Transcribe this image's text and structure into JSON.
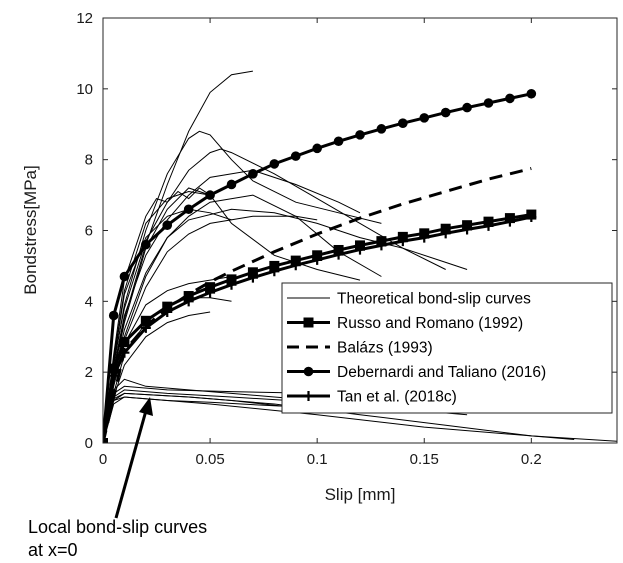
{
  "chart_data": {
    "type": "line",
    "xlabel": "Slip [mm]",
    "ylabel": "Bondstress[MPa]",
    "xlim": [
      0,
      0.24
    ],
    "ylim": [
      0,
      12
    ],
    "x_ticks": [
      0,
      0.05,
      0.1,
      0.15,
      0.2
    ],
    "x_tick_labels": [
      "0",
      "0.05",
      "0.1",
      "0.15",
      "0.2"
    ],
    "y_ticks": [
      0,
      2,
      4,
      6,
      8,
      10,
      12
    ],
    "y_tick_labels": [
      "0",
      "2",
      "4",
      "6",
      "8",
      "10",
      "12"
    ],
    "grid": false,
    "legend_position": "lower-right",
    "series": [
      {
        "name": "Russo and Romano (1992)",
        "style": "solid-thick",
        "marker": "square",
        "x": [
          0,
          0.005,
          0.01,
          0.02,
          0.03,
          0.04,
          0.05,
          0.06,
          0.07,
          0.08,
          0.09,
          0.1,
          0.11,
          0.12,
          0.13,
          0.14,
          0.15,
          0.16,
          0.17,
          0.18,
          0.19,
          0.2
        ],
        "y": [
          0,
          2.1,
          2.85,
          3.45,
          3.85,
          4.15,
          4.4,
          4.62,
          4.82,
          5.0,
          5.15,
          5.3,
          5.45,
          5.58,
          5.7,
          5.82,
          5.92,
          6.05,
          6.15,
          6.25,
          6.35,
          6.45
        ]
      },
      {
        "name": "Balázs (1993)",
        "style": "dashed-thick",
        "marker": "none",
        "x": [
          0,
          0.01,
          0.02,
          0.03,
          0.04,
          0.05,
          0.06,
          0.08,
          0.1,
          0.12,
          0.14,
          0.16,
          0.18,
          0.2
        ],
        "y": [
          0,
          2.6,
          3.3,
          3.8,
          4.2,
          4.55,
          4.85,
          5.4,
          5.9,
          6.35,
          6.75,
          7.1,
          7.45,
          7.75
        ]
      },
      {
        "name": "Debernardi and Taliano (2016)",
        "style": "solid-thick",
        "marker": "circle",
        "x": [
          0,
          0.005,
          0.01,
          0.02,
          0.03,
          0.04,
          0.05,
          0.06,
          0.07,
          0.08,
          0.09,
          0.1,
          0.11,
          0.12,
          0.13,
          0.14,
          0.15,
          0.16,
          0.17,
          0.18,
          0.19,
          0.2
        ],
        "y": [
          0,
          3.6,
          4.7,
          5.6,
          6.15,
          6.6,
          7.0,
          7.3,
          7.6,
          7.88,
          8.1,
          8.32,
          8.52,
          8.7,
          8.87,
          9.03,
          9.18,
          9.33,
          9.47,
          9.6,
          9.73,
          9.86
        ]
      },
      {
        "name": "Tan et al. (2018c)",
        "style": "solid-thick",
        "marker": "plus",
        "x": [
          0,
          0.005,
          0.01,
          0.02,
          0.03,
          0.04,
          0.05,
          0.06,
          0.07,
          0.08,
          0.09,
          0.1,
          0.11,
          0.12,
          0.13,
          0.14,
          0.15,
          0.16,
          0.17,
          0.18,
          0.19,
          0.2
        ],
        "y": [
          0,
          1.9,
          2.55,
          3.25,
          3.7,
          4.0,
          4.25,
          4.47,
          4.67,
          4.85,
          5.02,
          5.17,
          5.32,
          5.46,
          5.58,
          5.7,
          5.8,
          5.92,
          6.03,
          6.13,
          6.25,
          6.38
        ]
      },
      {
        "name": "Theoretical bond-slip curves",
        "style": "solid-thin",
        "marker": "none",
        "curves": [
          {
            "x": [
              0,
              0.005,
              0.01,
              0.02,
              0.03,
              0.04,
              0.05,
              0.06,
              0.07
            ],
            "y": [
              0,
              2.0,
              3.5,
              5.6,
              7.3,
              8.8,
              9.9,
              10.4,
              10.5
            ]
          },
          {
            "x": [
              0,
              0.005,
              0.01,
              0.02,
              0.03,
              0.04,
              0.045,
              0.05,
              0.06,
              0.07,
              0.09,
              0.11,
              0.13
            ],
            "y": [
              0,
              2.2,
              3.9,
              6.0,
              7.6,
              8.6,
              8.8,
              8.7,
              8.0,
              7.4,
              6.8,
              6.5,
              6.2
            ]
          },
          {
            "x": [
              0,
              0.005,
              0.01,
              0.02,
              0.03,
              0.04,
              0.05,
              0.055,
              0.06,
              0.08,
              0.1,
              0.12,
              0.14,
              0.16
            ],
            "y": [
              0,
              2.3,
              3.8,
              5.7,
              6.8,
              7.7,
              8.2,
              8.3,
              8.2,
              7.6,
              6.9,
              6.2,
              5.5,
              4.9
            ]
          },
          {
            "x": [
              0,
              0.005,
              0.01,
              0.02,
              0.03,
              0.04,
              0.05,
              0.07,
              0.09,
              0.11,
              0.12
            ],
            "y": [
              0,
              2.1,
              3.6,
              5.3,
              6.3,
              7.0,
              7.5,
              7.7,
              7.3,
              6.8,
              6.5
            ]
          },
          {
            "x": [
              0,
              0.005,
              0.01,
              0.02,
              0.03,
              0.04,
              0.05,
              0.07,
              0.09,
              0.11,
              0.13
            ],
            "y": [
              0,
              1.9,
              3.2,
              4.8,
              5.8,
              6.4,
              6.8,
              7.0,
              6.4,
              5.4,
              4.7
            ]
          },
          {
            "x": [
              0,
              0.005,
              0.01,
              0.02,
              0.03,
              0.04,
              0.05,
              0.06,
              0.08,
              0.1,
              0.12
            ],
            "y": [
              0,
              2.0,
              3.4,
              5.5,
              6.6,
              7.2,
              7.0,
              6.2,
              5.3,
              4.9,
              4.6
            ]
          },
          {
            "x": [
              0,
              0.005,
              0.01,
              0.02,
              0.03,
              0.04,
              0.06,
              0.08,
              0.1,
              0.12,
              0.14,
              0.16,
              0.17
            ],
            "y": [
              0,
              1.8,
              3.0,
              4.7,
              5.8,
              6.3,
              6.6,
              6.5,
              6.2,
              5.8,
              5.5,
              5.1,
              4.9
            ]
          },
          {
            "x": [
              0,
              0.005,
              0.01,
              0.02,
              0.03,
              0.04,
              0.05,
              0.07,
              0.09,
              0.1
            ],
            "y": [
              0,
              1.7,
              2.9,
              4.4,
              5.4,
              5.9,
              6.2,
              6.4,
              6.4,
              6.3
            ]
          },
          {
            "x": [
              0,
              0.005,
              0.01,
              0.02,
              0.03,
              0.04,
              0.05
            ],
            "y": [
              0,
              2.4,
              4.3,
              6.2,
              6.9,
              7.1,
              7.0
            ]
          },
          {
            "x": [
              0,
              0.005,
              0.01,
              0.02,
              0.025,
              0.03,
              0.035,
              0.04,
              0.045,
              0.05
            ],
            "y": [
              0,
              2.5,
              4.6,
              6.4,
              6.9,
              6.8,
              7.1,
              6.9,
              7.2,
              7.0
            ]
          },
          {
            "x": [
              0,
              0.005,
              0.01,
              0.02,
              0.03,
              0.04,
              0.05,
              0.06
            ],
            "y": [
              0,
              2.3,
              4.2,
              5.8,
              6.4,
              6.6,
              6.5,
              6.3
            ]
          },
          {
            "x": [
              0,
              0.005,
              0.01,
              0.02,
              0.03,
              0.04,
              0.05,
              0.06
            ],
            "y": [
              0,
              1.6,
              2.8,
              3.9,
              4.3,
              4.5,
              4.6,
              4.7
            ]
          },
          {
            "x": [
              0,
              0.005,
              0.01,
              0.02,
              0.03,
              0.04,
              0.05,
              0.06
            ],
            "y": [
              0,
              1.4,
              2.5,
              3.4,
              3.9,
              4.1,
              4.1,
              4.0
            ]
          },
          {
            "x": [
              0,
              0.005,
              0.01,
              0.02,
              0.03,
              0.04,
              0.05
            ],
            "y": [
              0,
              1.3,
              2.2,
              3.0,
              3.4,
              3.6,
              3.7
            ]
          }
        ]
      },
      {
        "name": "Local bond-slip curves at x=0",
        "style": "solid-thin",
        "marker": "none",
        "curves": [
          {
            "x": [
              0,
              0.005,
              0.01,
              0.02,
              0.04,
              0.06,
              0.08,
              0.1
            ],
            "y": [
              0,
              1.5,
              1.8,
              1.6,
              1.5,
              1.4,
              1.3,
              1.2
            ]
          },
          {
            "x": [
              0,
              0.005,
              0.01,
              0.03,
              0.06,
              0.1,
              0.13,
              0.15
            ],
            "y": [
              0,
              1.4,
              1.6,
              1.5,
              1.45,
              1.4,
              1.3,
              1.2
            ]
          },
          {
            "x": [
              0,
              0.005,
              0.01,
              0.03,
              0.06,
              0.1,
              0.14,
              0.17
            ],
            "y": [
              0,
              1.3,
              1.5,
              1.4,
              1.3,
              1.15,
              0.95,
              0.8
            ]
          },
          {
            "x": [
              0,
              0.005,
              0.01,
              0.04,
              0.08,
              0.12,
              0.16,
              0.2,
              0.24
            ],
            "y": [
              0,
              1.2,
              1.4,
              1.3,
              1.1,
              0.8,
              0.5,
              0.2,
              0.05
            ]
          },
          {
            "x": [
              0,
              0.005,
              0.01,
              0.04,
              0.06,
              0.09,
              0.1
            ],
            "y": [
              0,
              1.25,
              1.4,
              1.3,
              1.2,
              1.0,
              0.9
            ]
          },
          {
            "x": [
              0,
              0.005,
              0.01,
              0.03,
              0.05,
              0.08,
              0.1
            ],
            "y": [
              0,
              1.1,
              1.3,
              1.2,
              1.15,
              1.05,
              1.0
            ]
          },
          {
            "x": [
              0,
              0.005,
              0.01,
              0.05,
              0.1,
              0.15,
              0.2,
              0.22
            ],
            "y": [
              0,
              1.2,
              1.3,
              1.1,
              0.8,
              0.45,
              0.2,
              0.1
            ]
          }
        ]
      }
    ],
    "legend": [
      {
        "label": "Theoretical bond-slip curves",
        "style": "solid-thin",
        "marker": "none"
      },
      {
        "label": "Russo and Romano (1992)",
        "style": "solid-thick",
        "marker": "square"
      },
      {
        "label": "Balázs (1993)",
        "style": "dashed-thick",
        "marker": "none"
      },
      {
        "label": "Debernardi and Taliano (2016)",
        "style": "solid-thick",
        "marker": "circle"
      },
      {
        "label": "Tan et al. (2018c)",
        "style": "solid-thick",
        "marker": "plus"
      }
    ],
    "annotations": [
      {
        "text_lines": [
          "Local bond-slip curves",
          "at x=0"
        ],
        "arrow_target": {
          "x": 0.033,
          "y": 1.3
        }
      }
    ]
  }
}
